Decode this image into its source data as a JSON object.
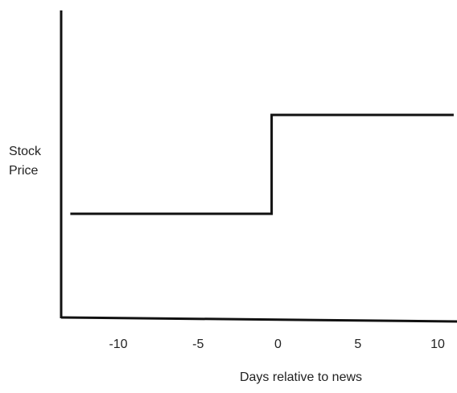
{
  "chart_data": {
    "type": "line",
    "title": "",
    "xlabel": "Days relative to news",
    "ylabel_lines": [
      "Stock",
      "Price"
    ],
    "x_ticks": [
      -10,
      -5,
      0,
      5,
      10
    ],
    "x_tick_labels": [
      "-10",
      "-5",
      "0",
      "5",
      "10"
    ],
    "y_ticks_shown": false,
    "grid": false,
    "legend": "none",
    "series": [
      {
        "step": true,
        "points": [
          {
            "x": -13,
            "y": 1
          },
          {
            "x": -0.4,
            "y": 1
          },
          {
            "x": -0.4,
            "y": 2
          },
          {
            "x": 11,
            "y": 2
          }
        ]
      }
    ],
    "y_level_labels": {
      "low": "",
      "high": ""
    },
    "colors": {
      "line": "#111111",
      "axis": "#111111",
      "text": "#222222"
    }
  }
}
